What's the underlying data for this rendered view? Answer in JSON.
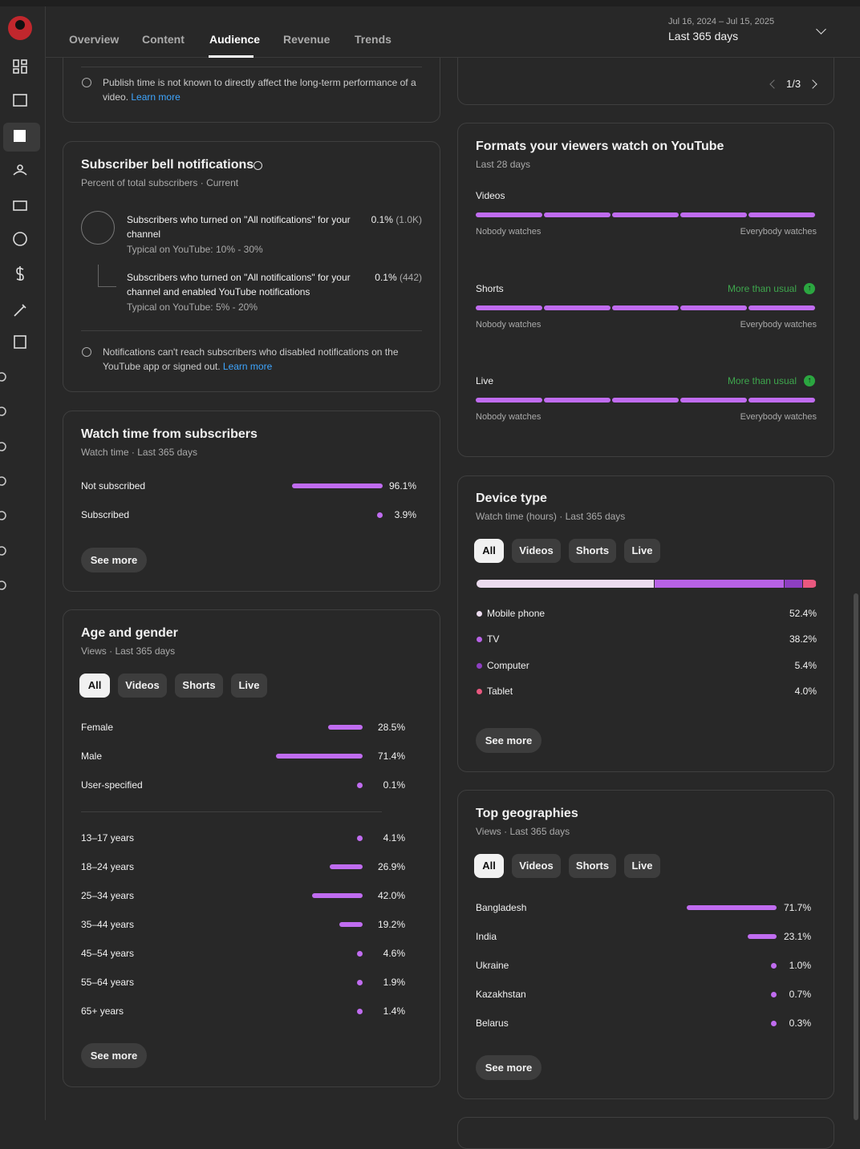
{
  "tabs": [
    "Overview",
    "Content",
    "Audience",
    "Revenue",
    "Trends"
  ],
  "date_range": {
    "dates": "Jul 16, 2024 – Jul 15, 2025",
    "label": "Last 365 days"
  },
  "publish_note": {
    "text": "Publish time is not known to directly affect the long-term performance of a video.",
    "link": "Learn more"
  },
  "pager": "1/3",
  "bell": {
    "title": "Subscriber bell notifications",
    "subtitle": "Percent of total subscribers · Current",
    "rows": [
      {
        "label": "Subscribers who turned on \"All notifications\" for your channel",
        "typical": "Typical on YouTube: 10% - 30%",
        "value": "0.1%",
        "count": "(1.0K)"
      },
      {
        "label": "Subscribers who turned on \"All notifications\" for your channel and enabled YouTube notifications",
        "typical": "Typical on YouTube: 5% - 20%",
        "value": "0.1%",
        "count": "(442)"
      }
    ],
    "note": "Notifications can't reach subscribers who disabled notifications on the YouTube app or signed out.",
    "link": "Learn more"
  },
  "watch_subs": {
    "title": "Watch time from subscribers",
    "subtitle": "Watch time · Last 365 days",
    "rows": [
      {
        "label": "Not subscribed",
        "value": 96.1,
        "value_label": "96.1%"
      },
      {
        "label": "Subscribed",
        "value": 3.9,
        "value_label": "3.9%"
      }
    ],
    "button": "See more"
  },
  "age_gender": {
    "title": "Age and gender",
    "subtitle": "Views · Last 365 days",
    "filters": [
      "All",
      "Videos",
      "Shorts",
      "Live"
    ],
    "gender": [
      {
        "label": "Female",
        "value": 28.5,
        "value_label": "28.5%"
      },
      {
        "label": "Male",
        "value": 71.4,
        "value_label": "71.4%"
      },
      {
        "label": "User-specified",
        "value": 0.1,
        "value_label": "0.1%"
      }
    ],
    "age": [
      {
        "label": "13–17 years",
        "value": 4.1,
        "value_label": "4.1%"
      },
      {
        "label": "18–24 years",
        "value": 26.9,
        "value_label": "26.9%"
      },
      {
        "label": "25–34 years",
        "value": 42.0,
        "value_label": "42.0%"
      },
      {
        "label": "35–44 years",
        "value": 19.2,
        "value_label": "19.2%"
      },
      {
        "label": "45–54 years",
        "value": 4.6,
        "value_label": "4.6%"
      },
      {
        "label": "55–64 years",
        "value": 1.9,
        "value_label": "1.9%"
      },
      {
        "label": "65+ years",
        "value": 1.4,
        "value_label": "1.4%"
      }
    ],
    "button": "See more"
  },
  "formats": {
    "title": "Formats your viewers watch on YouTube",
    "subtitle": "Last 28 days",
    "min_label": "Nobody watches",
    "max_label": "Everybody watches",
    "rows": [
      {
        "label": "Videos"
      },
      {
        "label": "Shorts",
        "badge": "More than usual"
      },
      {
        "label": "Live",
        "badge": "More than usual"
      }
    ]
  },
  "device": {
    "title": "Device type",
    "subtitle": "Watch time (hours) · Last 365 days",
    "filters": [
      "All",
      "Videos",
      "Shorts",
      "Live"
    ],
    "rows": [
      {
        "label": "Mobile phone",
        "value": 52.4,
        "value_label": "52.4%",
        "color": "#ecdcef"
      },
      {
        "label": "TV",
        "value": 38.2,
        "value_label": "38.2%",
        "color": "#b862e6"
      },
      {
        "label": "Computer",
        "value": 5.4,
        "value_label": "5.4%",
        "color": "#8e3fc2"
      },
      {
        "label": "Tablet",
        "value": 4.0,
        "value_label": "4.0%",
        "color": "#e9587f"
      }
    ],
    "button": "See more"
  },
  "geo": {
    "title": "Top geographies",
    "subtitle": "Views · Last 365 days",
    "filters": [
      "All",
      "Videos",
      "Shorts",
      "Live"
    ],
    "rows": [
      {
        "label": "Bangladesh",
        "value": 71.7,
        "value_label": "71.7%"
      },
      {
        "label": "India",
        "value": 23.1,
        "value_label": "23.1%"
      },
      {
        "label": "Ukraine",
        "value": 1.0,
        "value_label": "1.0%"
      },
      {
        "label": "Kazakhstan",
        "value": 0.7,
        "value_label": "0.7%"
      },
      {
        "label": "Belarus",
        "value": 0.3,
        "value_label": "0.3%"
      }
    ],
    "button": "See more"
  }
}
